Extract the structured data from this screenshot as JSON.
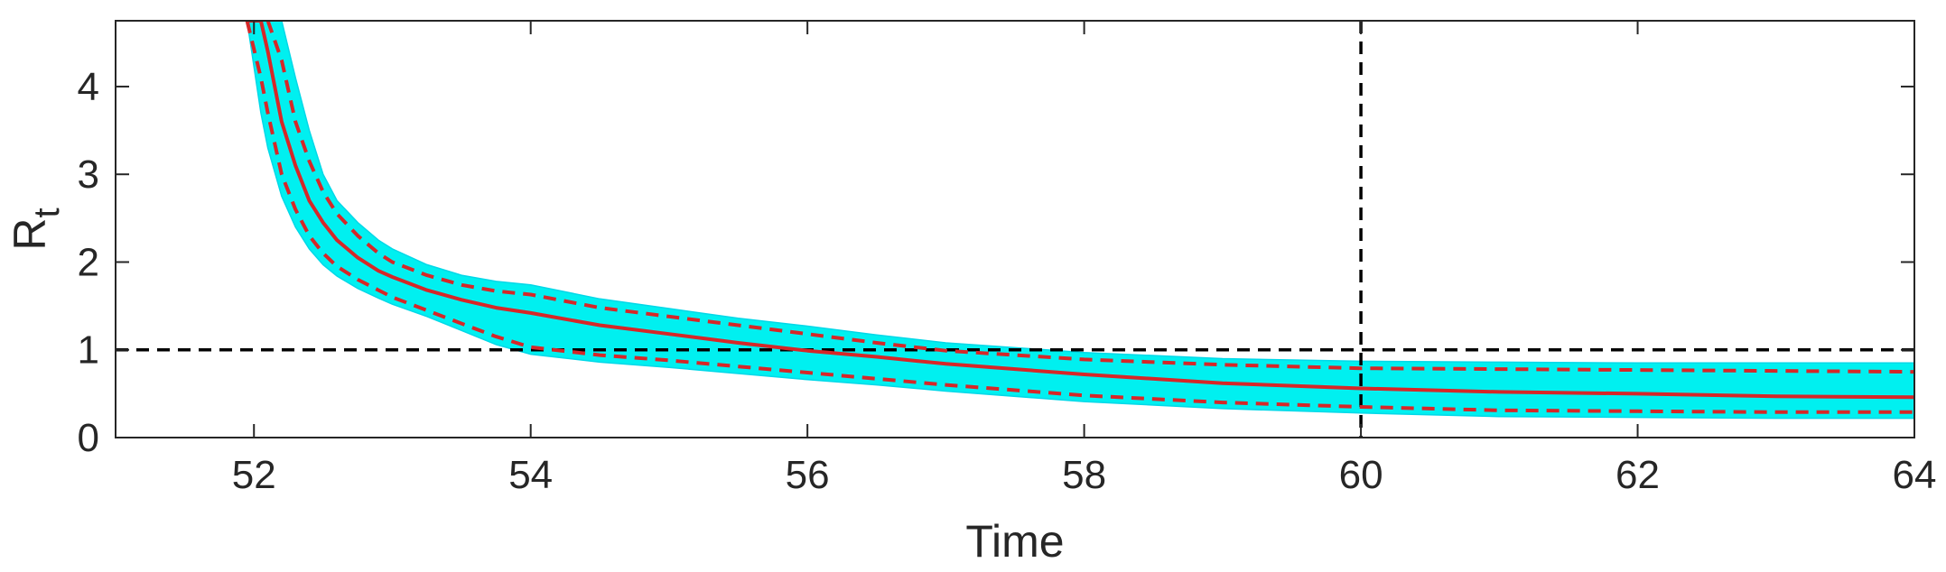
{
  "chart_data": {
    "type": "line",
    "title": "",
    "xlabel": "Time",
    "ylabel": "R",
    "ylabel_subscript": "t",
    "xlim": [
      51,
      64
    ],
    "ylim": [
      0,
      4.75
    ],
    "xticks": [
      52,
      54,
      56,
      58,
      60,
      62,
      64
    ],
    "yticks": [
      0,
      1,
      2,
      3,
      4
    ],
    "grid": false,
    "legend": "none",
    "colors": {
      "band": "#00f0f0",
      "band_edge": "#00d8e8",
      "median": "#d62728",
      "reference": "#000000",
      "axis": "#262626"
    },
    "reference_lines": [
      {
        "orientation": "horizontal",
        "value": 1,
        "style": "dashed"
      },
      {
        "orientation": "vertical",
        "value": 60,
        "style": "dashed"
      }
    ],
    "x": [
      51.95,
      52.05,
      52.1,
      52.2,
      52.3,
      52.4,
      52.5,
      52.6,
      52.75,
      52.9,
      53.0,
      53.25,
      53.5,
      53.75,
      54.0,
      54.5,
      55.0,
      55.5,
      56.0,
      56.5,
      57.0,
      58.0,
      59.0,
      60.0,
      61.0,
      62.0,
      63.0,
      64.0
    ],
    "series": [
      {
        "style": "solid",
        "values": [
          4.75,
          4.75,
          4.4,
          3.6,
          3.1,
          2.7,
          2.45,
          2.25,
          2.05,
          1.9,
          1.83,
          1.68,
          1.57,
          1.48,
          1.42,
          1.28,
          1.18,
          1.08,
          0.99,
          0.92,
          0.84,
          0.72,
          0.62,
          0.56,
          0.52,
          0.5,
          0.47,
          0.46
        ]
      },
      {
        "style": "dashed",
        "values": [
          4.75,
          4.75,
          4.75,
          4.3,
          3.6,
          3.15,
          2.8,
          2.55,
          2.3,
          2.1,
          2.0,
          1.85,
          1.74,
          1.67,
          1.63,
          1.48,
          1.38,
          1.28,
          1.18,
          1.08,
          0.99,
          0.89,
          0.83,
          0.79,
          0.78,
          0.77,
          0.76,
          0.75
        ]
      },
      {
        "style": "dashed",
        "values": [
          4.75,
          4.1,
          3.7,
          3.0,
          2.6,
          2.3,
          2.1,
          1.95,
          1.8,
          1.68,
          1.6,
          1.45,
          1.3,
          1.15,
          1.03,
          0.94,
          0.88,
          0.81,
          0.74,
          0.67,
          0.6,
          0.48,
          0.4,
          0.35,
          0.31,
          0.3,
          0.29,
          0.29
        ]
      }
    ],
    "band": {
      "upper": [
        4.75,
        4.75,
        4.75,
        4.75,
        4.1,
        3.5,
        3.0,
        2.7,
        2.45,
        2.25,
        2.15,
        1.97,
        1.85,
        1.78,
        1.74,
        1.58,
        1.47,
        1.36,
        1.27,
        1.17,
        1.08,
        0.97,
        0.9,
        0.87,
        0.86,
        0.85,
        0.85,
        0.85
      ],
      "lower": [
        4.75,
        3.7,
        3.3,
        2.75,
        2.4,
        2.15,
        1.97,
        1.84,
        1.7,
        1.59,
        1.52,
        1.38,
        1.22,
        1.06,
        0.95,
        0.86,
        0.8,
        0.73,
        0.66,
        0.6,
        0.53,
        0.41,
        0.33,
        0.28,
        0.24,
        0.23,
        0.22,
        0.22
      ]
    }
  }
}
